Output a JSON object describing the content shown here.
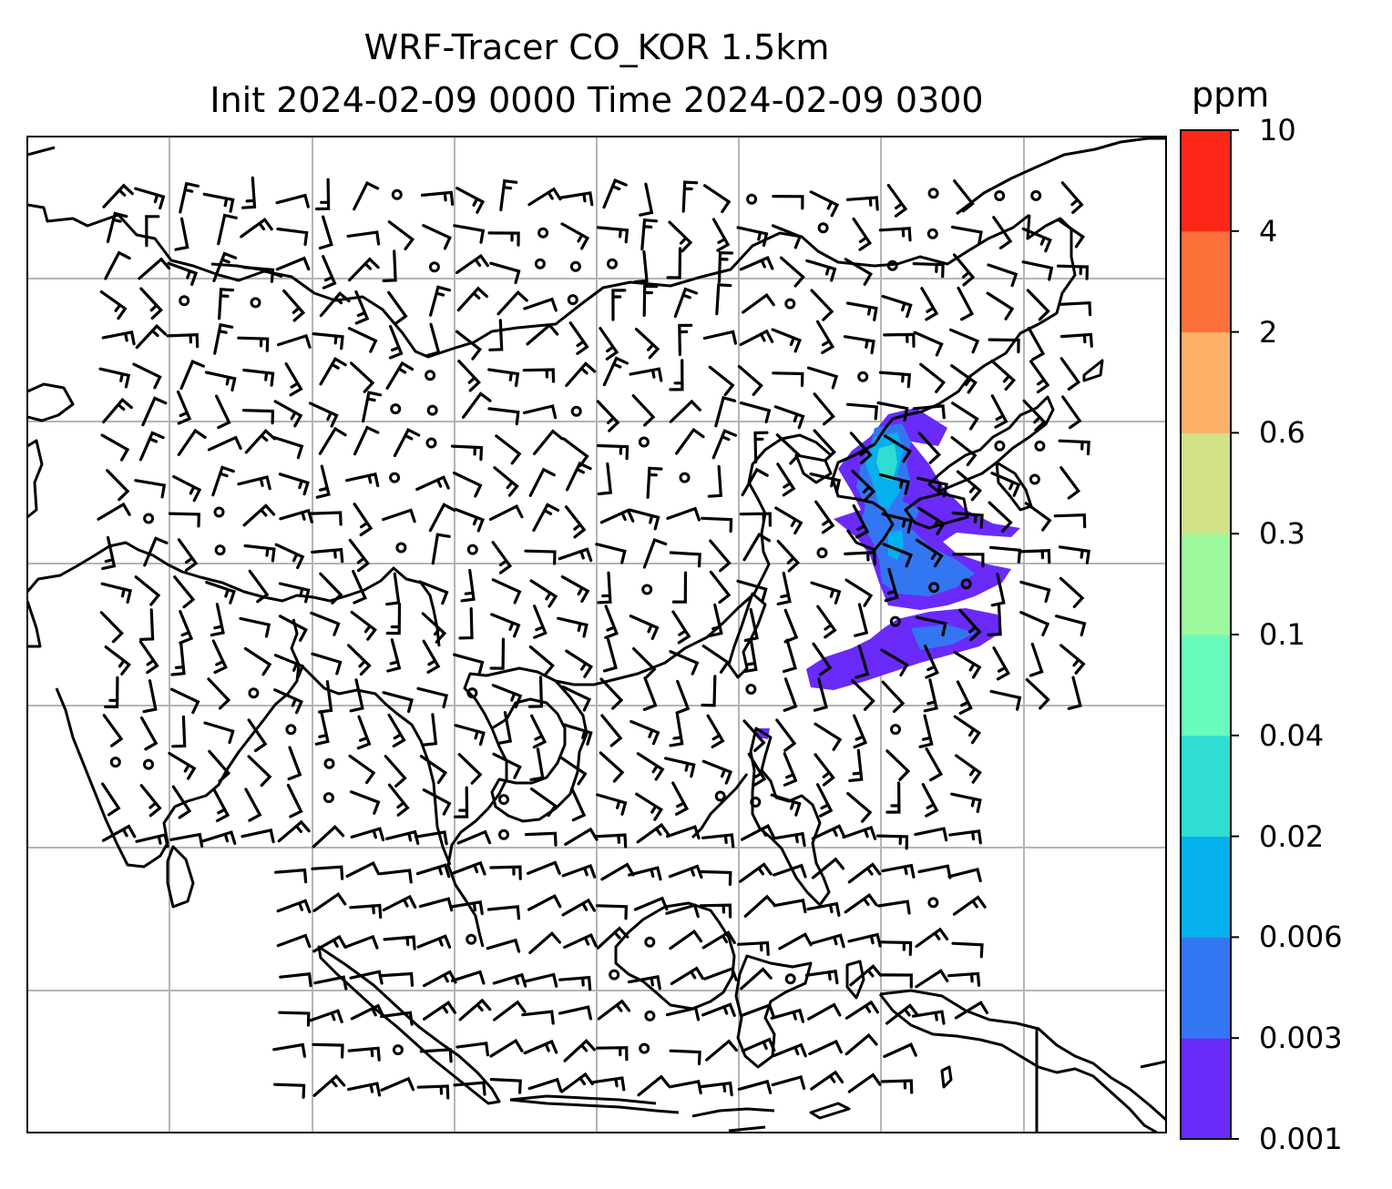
{
  "title": {
    "line1": "WRF-Tracer CO_KOR 1.5km",
    "line2": "Init 2024-02-09 0000 Time 2024-02-09 0300"
  },
  "colorbar": {
    "unit": "ppm",
    "levels": [
      "0.001",
      "0.003",
      "0.006",
      "0.02",
      "0.04",
      "0.1",
      "0.3",
      "0.6",
      "2",
      "4",
      "10"
    ],
    "colors": [
      "#6a2afa",
      "#3376f2",
      "#04b1ec",
      "#30ddd3",
      "#69fbbd",
      "#9df99e",
      "#d1e186",
      "#fdb168",
      "#fd713a",
      "#fd2719"
    ]
  },
  "map": {
    "gridlines": true,
    "coastline_color": "#000000",
    "gridline_color": "#b5b5b5"
  }
}
